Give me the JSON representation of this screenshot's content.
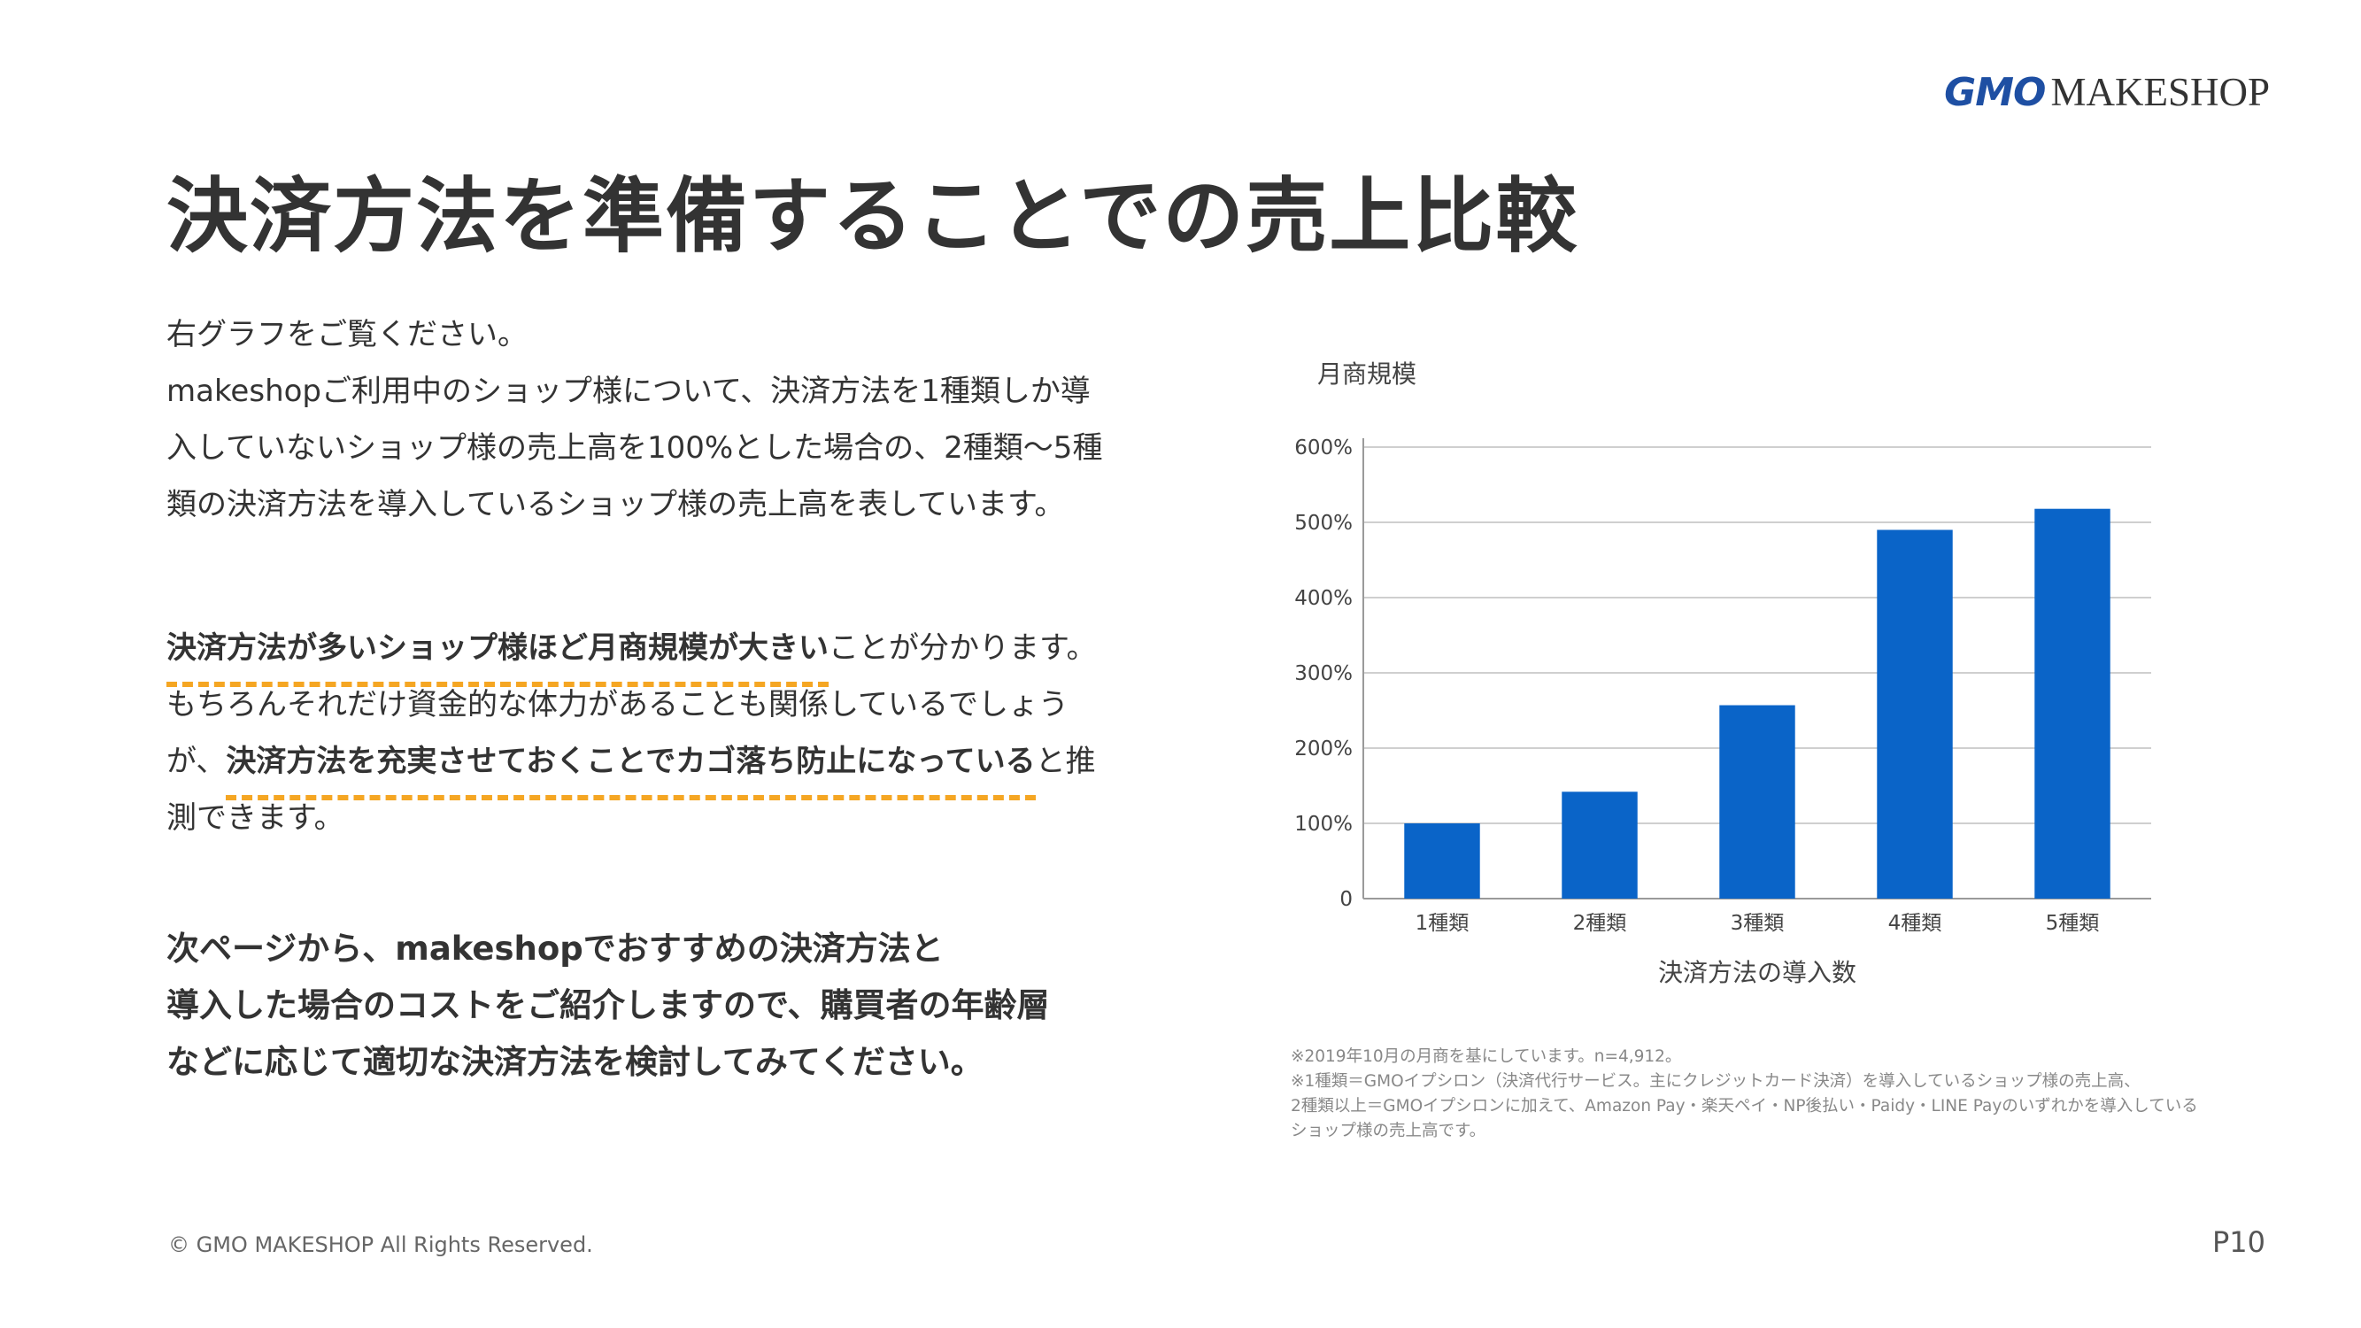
{
  "logo": {
    "gmo": "GMO",
    "brand": "MAKESHOP"
  },
  "title": "決済方法を準備することでの売上比較",
  "intro": [
    "右グラフをご覧ください。",
    "makeshopご利用中のショップ様について、決済方法を1種類しか導",
    "入していないショップ様の売上高を100%とした場合の、2種類〜5種",
    "類の決済方法を導入しているショップ様の売上高を表しています。"
  ],
  "finding": {
    "line1_hl": "決済方法が多いショップ様ほど月商規模が大きい",
    "line1_rest": "ことが分かります。",
    "line2": "もちろんそれだけ資金的な体力があることも関係しているでしょう",
    "line3_pre": "が、",
    "line3_hl": "決済方法を充実させておくことでカゴ落ち防止になっている",
    "line3_post": "と推",
    "line4": "測できます。"
  },
  "next": [
    "次ページから、makeshopでおすすめの決済方法と",
    "導入した場合のコストをご紹介しますので、購買者の年齢層",
    "などに応じて適切な決済方法を検討してみてください。"
  ],
  "chart_data": {
    "type": "bar",
    "categories": [
      "1種類",
      "2種類",
      "3種類",
      "4種類",
      "5種類"
    ],
    "values": [
      100,
      142,
      257,
      490,
      518
    ],
    "ylabel": "月商規模",
    "xlabel": "決済方法の導入数",
    "ylim": [
      0,
      600
    ],
    "yticks": [
      0,
      100,
      200,
      300,
      400,
      500,
      600
    ],
    "ytick_labels": [
      "0",
      "100%",
      "200%",
      "300%",
      "400%",
      "500%",
      "600%"
    ],
    "grid": true,
    "bar_color": "#0a64c8"
  },
  "notes": [
    "※2019年10月の月商を基にしています。n=4,912。",
    "※1種類＝GMOイプシロン（決済代行サービス。主にクレジットカード決済）を導入しているショップ様の売上高、",
    "2種類以上＝GMOイプシロンに加えて、Amazon Pay・楽天ペイ・NP後払い・Paidy・LINE Payのいずれかを導入している",
    "ショップ様の売上高です。"
  ],
  "footer": {
    "copyright": "© GMO MAKESHOP All Rights Reserved.",
    "page": "P10"
  }
}
